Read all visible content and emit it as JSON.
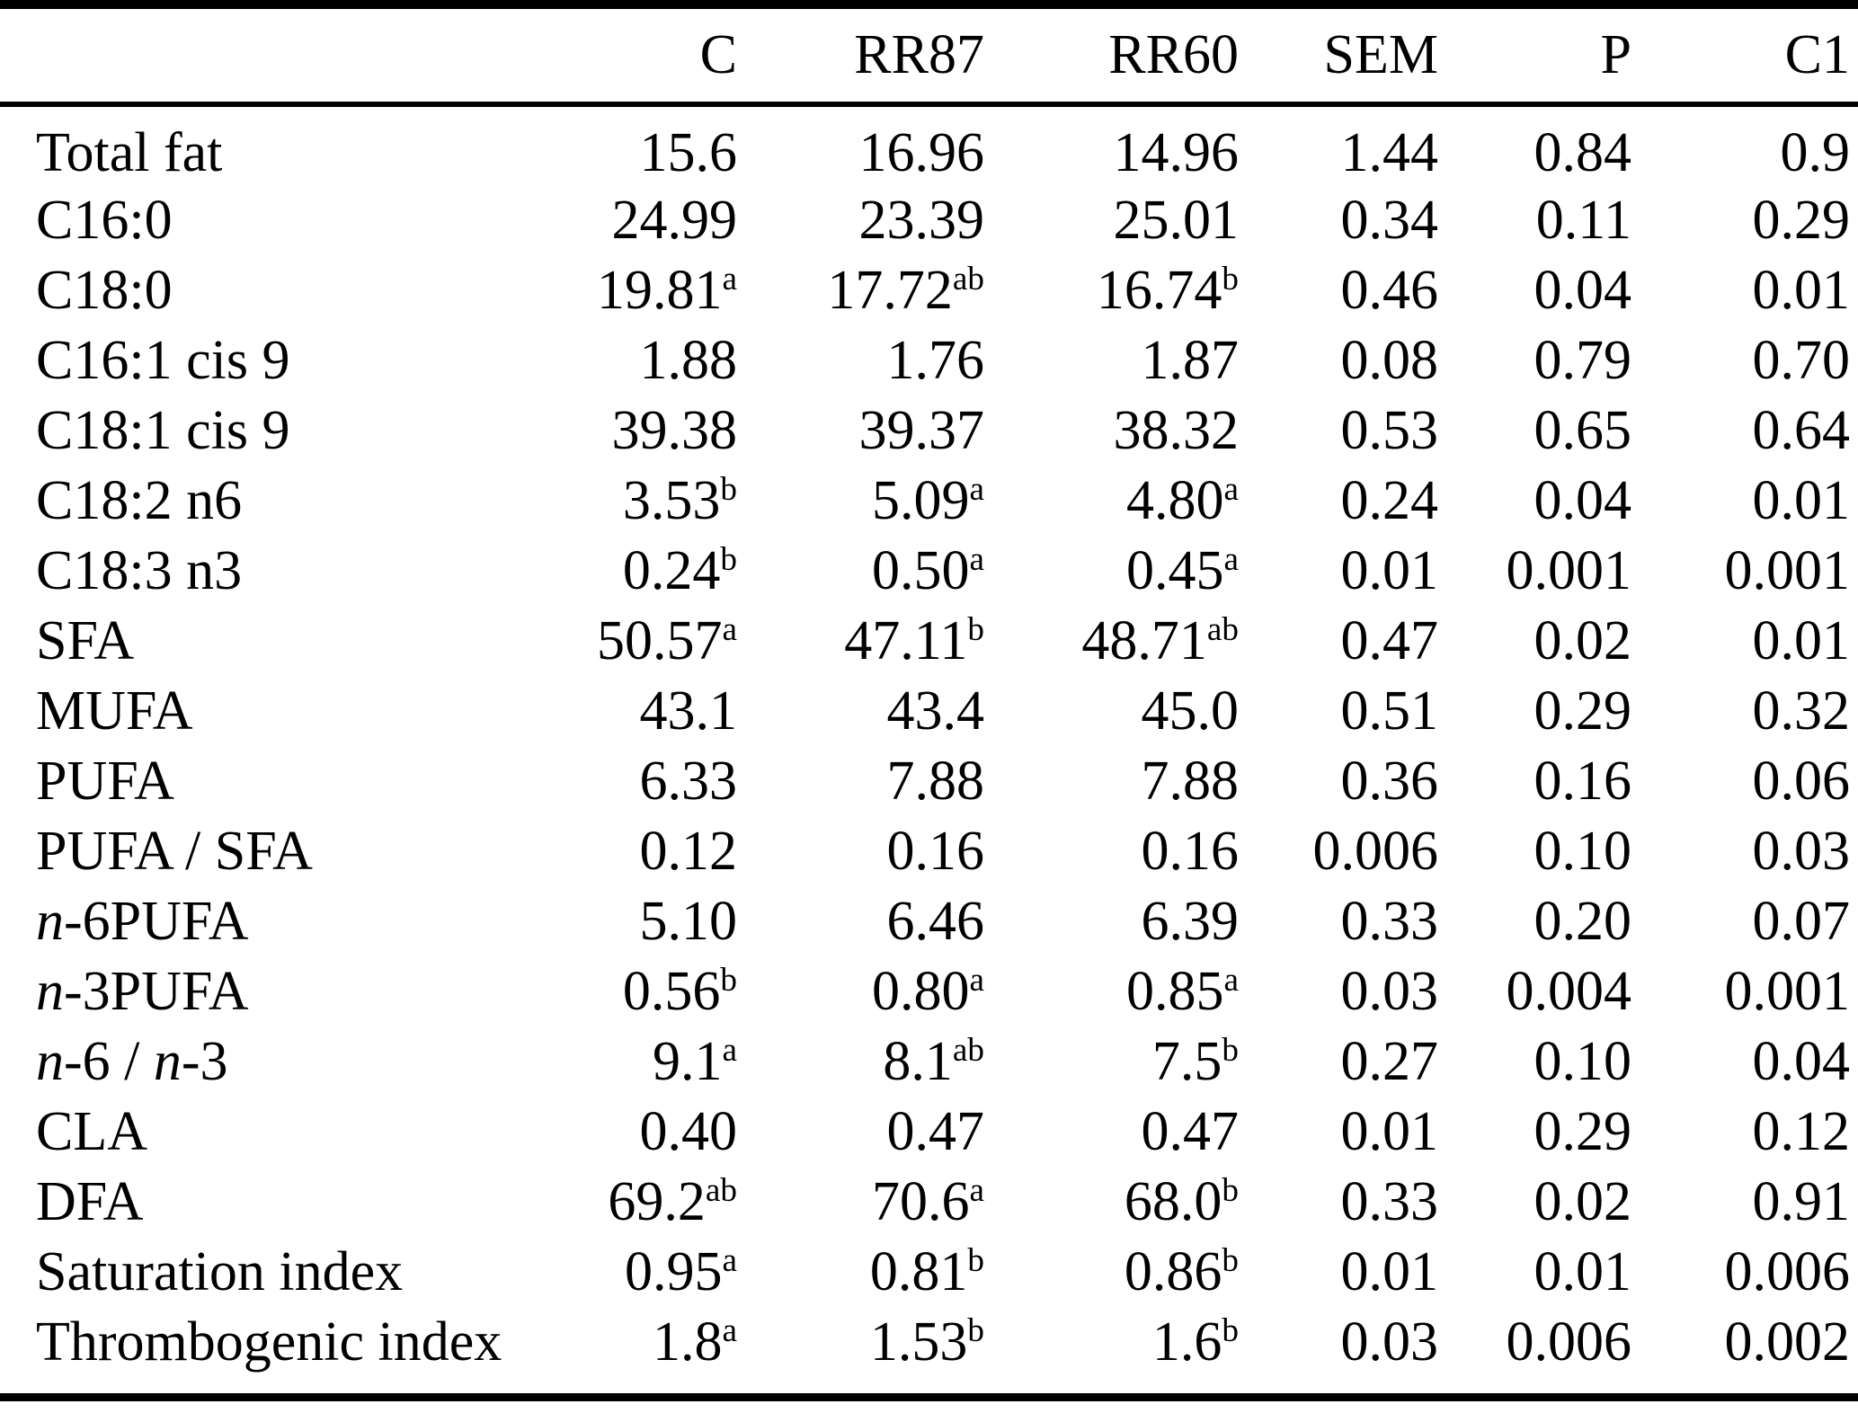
{
  "table": {
    "col_headers": [
      "C",
      "RR87",
      "RR60",
      "SEM",
      "P",
      "C1"
    ],
    "rows": [
      {
        "label": [
          {
            "text": "Total fat",
            "italic": false
          }
        ],
        "cells": [
          {
            "value": "15.6",
            "sup": ""
          },
          {
            "value": "16.96",
            "sup": ""
          },
          {
            "value": "14.96",
            "sup": ""
          },
          {
            "value": "1.44",
            "sup": ""
          },
          {
            "value": "0.84",
            "sup": ""
          },
          {
            "value": "0.9",
            "sup": ""
          }
        ]
      },
      {
        "label": [
          {
            "text": "C16:0",
            "italic": false
          }
        ],
        "cells": [
          {
            "value": "24.99",
            "sup": ""
          },
          {
            "value": "23.39",
            "sup": ""
          },
          {
            "value": "25.01",
            "sup": ""
          },
          {
            "value": "0.34",
            "sup": ""
          },
          {
            "value": "0.11",
            "sup": ""
          },
          {
            "value": "0.29",
            "sup": ""
          }
        ]
      },
      {
        "label": [
          {
            "text": "C18:0",
            "italic": false
          }
        ],
        "cells": [
          {
            "value": "19.81",
            "sup": "a"
          },
          {
            "value": "17.72",
            "sup": "ab"
          },
          {
            "value": "16.74",
            "sup": "b"
          },
          {
            "value": "0.46",
            "sup": ""
          },
          {
            "value": "0.04",
            "sup": ""
          },
          {
            "value": "0.01",
            "sup": ""
          }
        ]
      },
      {
        "label": [
          {
            "text": "C16:1 cis 9",
            "italic": false
          }
        ],
        "cells": [
          {
            "value": "1.88",
            "sup": ""
          },
          {
            "value": "1.76",
            "sup": ""
          },
          {
            "value": "1.87",
            "sup": ""
          },
          {
            "value": "0.08",
            "sup": ""
          },
          {
            "value": "0.79",
            "sup": ""
          },
          {
            "value": "0.70",
            "sup": ""
          }
        ]
      },
      {
        "label": [
          {
            "text": "C18:1 cis 9",
            "italic": false
          }
        ],
        "cells": [
          {
            "value": "39.38",
            "sup": ""
          },
          {
            "value": "39.37",
            "sup": ""
          },
          {
            "value": "38.32",
            "sup": ""
          },
          {
            "value": "0.53",
            "sup": ""
          },
          {
            "value": "0.65",
            "sup": ""
          },
          {
            "value": "0.64",
            "sup": ""
          }
        ]
      },
      {
        "label": [
          {
            "text": "C18:2 n6",
            "italic": false
          }
        ],
        "cells": [
          {
            "value": "3.53",
            "sup": "b"
          },
          {
            "value": "5.09",
            "sup": "a"
          },
          {
            "value": "4.80",
            "sup": "a"
          },
          {
            "value": "0.24",
            "sup": ""
          },
          {
            "value": "0.04",
            "sup": ""
          },
          {
            "value": "0.01",
            "sup": ""
          }
        ]
      },
      {
        "label": [
          {
            "text": "C18:3 n3",
            "italic": false
          }
        ],
        "cells": [
          {
            "value": "0.24",
            "sup": "b"
          },
          {
            "value": "0.50",
            "sup": "a"
          },
          {
            "value": "0.45",
            "sup": "a"
          },
          {
            "value": "0.01",
            "sup": ""
          },
          {
            "value": "0.001",
            "sup": ""
          },
          {
            "value": "0.001",
            "sup": ""
          }
        ]
      },
      {
        "label": [
          {
            "text": "SFA",
            "italic": false
          }
        ],
        "cells": [
          {
            "value": "50.57",
            "sup": "a"
          },
          {
            "value": "47.11",
            "sup": "b"
          },
          {
            "value": "48.71",
            "sup": "ab"
          },
          {
            "value": "0.47",
            "sup": ""
          },
          {
            "value": "0.02",
            "sup": ""
          },
          {
            "value": "0.01",
            "sup": ""
          }
        ]
      },
      {
        "label": [
          {
            "text": "MUFA",
            "italic": false
          }
        ],
        "cells": [
          {
            "value": "43.1",
            "sup": ""
          },
          {
            "value": "43.4",
            "sup": ""
          },
          {
            "value": "45.0",
            "sup": ""
          },
          {
            "value": "0.51",
            "sup": ""
          },
          {
            "value": "0.29",
            "sup": ""
          },
          {
            "value": "0.32",
            "sup": ""
          }
        ]
      },
      {
        "label": [
          {
            "text": "PUFA",
            "italic": false
          }
        ],
        "cells": [
          {
            "value": "6.33",
            "sup": ""
          },
          {
            "value": "7.88",
            "sup": ""
          },
          {
            "value": "7.88",
            "sup": ""
          },
          {
            "value": "0.36",
            "sup": ""
          },
          {
            "value": "0.16",
            "sup": ""
          },
          {
            "value": "0.06",
            "sup": ""
          }
        ]
      },
      {
        "label": [
          {
            "text": "PUFA / SFA",
            "italic": false
          }
        ],
        "cells": [
          {
            "value": "0.12",
            "sup": ""
          },
          {
            "value": "0.16",
            "sup": ""
          },
          {
            "value": "0.16",
            "sup": ""
          },
          {
            "value": "0.006",
            "sup": ""
          },
          {
            "value": "0.10",
            "sup": ""
          },
          {
            "value": "0.03",
            "sup": ""
          }
        ]
      },
      {
        "label": [
          {
            "text": "n",
            "italic": true
          },
          {
            "text": "-6PUFA",
            "italic": false
          }
        ],
        "cells": [
          {
            "value": "5.10",
            "sup": ""
          },
          {
            "value": "6.46",
            "sup": ""
          },
          {
            "value": "6.39",
            "sup": ""
          },
          {
            "value": "0.33",
            "sup": ""
          },
          {
            "value": "0.20",
            "sup": ""
          },
          {
            "value": "0.07",
            "sup": ""
          }
        ]
      },
      {
        "label": [
          {
            "text": "n",
            "italic": true
          },
          {
            "text": "-3PUFA",
            "italic": false
          }
        ],
        "cells": [
          {
            "value": "0.56",
            "sup": "b"
          },
          {
            "value": "0.80",
            "sup": "a"
          },
          {
            "value": "0.85",
            "sup": "a"
          },
          {
            "value": "0.03",
            "sup": ""
          },
          {
            "value": "0.004",
            "sup": ""
          },
          {
            "value": "0.001",
            "sup": ""
          }
        ]
      },
      {
        "label": [
          {
            "text": "n",
            "italic": true
          },
          {
            "text": "-6 / ",
            "italic": false
          },
          {
            "text": "n",
            "italic": true
          },
          {
            "text": "-3",
            "italic": false
          }
        ],
        "cells": [
          {
            "value": "9.1",
            "sup": "a"
          },
          {
            "value": "8.1",
            "sup": "ab"
          },
          {
            "value": "7.5",
            "sup": "b"
          },
          {
            "value": "0.27",
            "sup": ""
          },
          {
            "value": "0.10",
            "sup": ""
          },
          {
            "value": "0.04",
            "sup": ""
          }
        ]
      },
      {
        "label": [
          {
            "text": "CLA",
            "italic": false
          }
        ],
        "cells": [
          {
            "value": "0.40",
            "sup": ""
          },
          {
            "value": "0.47",
            "sup": ""
          },
          {
            "value": "0.47",
            "sup": ""
          },
          {
            "value": "0.01",
            "sup": ""
          },
          {
            "value": "0.29",
            "sup": ""
          },
          {
            "value": "0.12",
            "sup": ""
          }
        ]
      },
      {
        "label": [
          {
            "text": "DFA",
            "italic": false
          }
        ],
        "cells": [
          {
            "value": "69.2",
            "sup": "ab"
          },
          {
            "value": "70.6",
            "sup": "a"
          },
          {
            "value": "68.0",
            "sup": "b"
          },
          {
            "value": "0.33",
            "sup": ""
          },
          {
            "value": "0.02",
            "sup": ""
          },
          {
            "value": "0.91",
            "sup": ""
          }
        ]
      },
      {
        "label": [
          {
            "text": "Saturation index",
            "italic": false
          }
        ],
        "cells": [
          {
            "value": "0.95",
            "sup": "a"
          },
          {
            "value": "0.81",
            "sup": "b"
          },
          {
            "value": "0.86",
            "sup": "b"
          },
          {
            "value": "0.01",
            "sup": ""
          },
          {
            "value": "0.01",
            "sup": ""
          },
          {
            "value": "0.006",
            "sup": ""
          }
        ]
      },
      {
        "label": [
          {
            "text": "Thrombogenic index",
            "italic": false
          }
        ],
        "cells": [
          {
            "value": "1.8",
            "sup": "a"
          },
          {
            "value": "1.53",
            "sup": "b"
          },
          {
            "value": "1.6",
            "sup": "b"
          },
          {
            "value": "0.03",
            "sup": ""
          },
          {
            "value": "0.006",
            "sup": ""
          },
          {
            "value": "0.002",
            "sup": ""
          }
        ]
      }
    ]
  }
}
